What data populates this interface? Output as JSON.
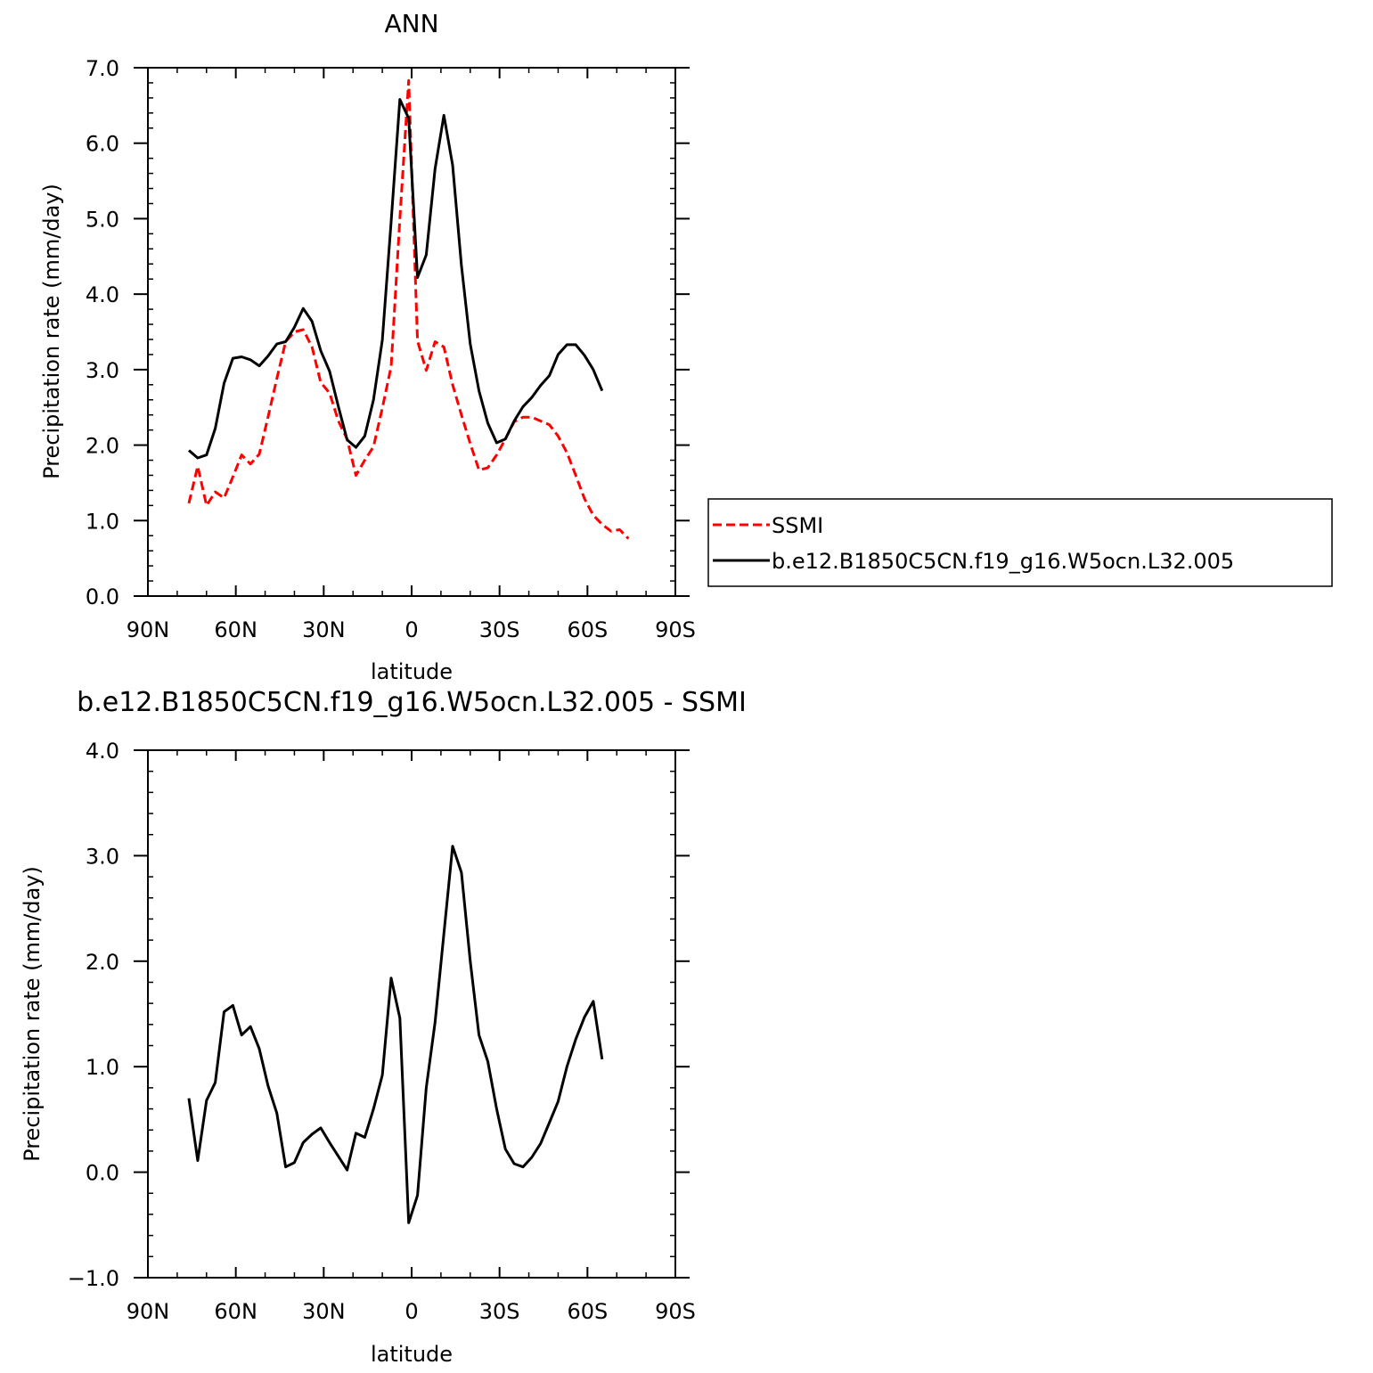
{
  "chart_data": [
    {
      "type": "line",
      "title": "ANN",
      "xlabel": "latitude",
      "ylabel": "Precipitation rate (mm/day)",
      "xlim": [
        90,
        -90
      ],
      "ylim": [
        0,
        7
      ],
      "x_ticks": [
        90,
        60,
        30,
        0,
        -30,
        -60,
        -90
      ],
      "x_tick_labels": [
        "90N",
        "60N",
        "30N",
        "0",
        "30S",
        "60S",
        "90S"
      ],
      "y_ticks": [
        0,
        1,
        2,
        3,
        4,
        5,
        6,
        7
      ],
      "y_tick_labels": [
        "0.0",
        "1.0",
        "2.0",
        "3.0",
        "4.0",
        "5.0",
        "6.0",
        "7.0"
      ],
      "legend_position": "right",
      "series": [
        {
          "name": "SSMI",
          "color": "#ff0000",
          "dash": "dashed",
          "x": [
            76,
            73,
            70,
            67,
            64,
            61,
            58,
            55,
            52,
            49,
            46,
            43,
            40,
            37,
            34,
            31,
            28,
            25,
            22,
            19,
            16,
            13,
            10,
            7,
            4,
            1,
            -2,
            -5,
            -8,
            -11,
            -14,
            -17,
            -20,
            -23,
            -26,
            -29,
            -32,
            -35,
            -38,
            -41,
            -44,
            -47,
            -50,
            -53,
            -56,
            -59,
            -62,
            -65,
            -68,
            -71,
            -74
          ],
          "y": [
            1.23,
            1.72,
            1.2,
            1.38,
            1.3,
            1.58,
            1.87,
            1.75,
            1.88,
            2.37,
            2.88,
            3.37,
            3.5,
            3.53,
            3.3,
            2.83,
            2.69,
            2.32,
            2.08,
            1.6,
            1.8,
            1.98,
            2.49,
            3.04,
            5.0,
            6.83,
            3.38,
            2.99,
            3.37,
            3.3,
            2.8,
            2.4,
            2.02,
            1.67,
            1.7,
            1.87,
            2.08,
            2.31,
            2.37,
            2.37,
            2.32,
            2.27,
            2.12,
            1.9,
            1.6,
            1.29,
            1.07,
            0.95,
            0.86,
            0.88,
            0.76
          ]
        },
        {
          "name": "b.e12.B1850C5CN.f19_g16.W5ocn.L32.005",
          "color": "#000000",
          "dash": "solid",
          "x": [
            76,
            73,
            70,
            67,
            64,
            61,
            58,
            55,
            52,
            49,
            46,
            43,
            40,
            37,
            34,
            31,
            28,
            25,
            22,
            19,
            16,
            13,
            10,
            7,
            4,
            1,
            -2,
            -5,
            -8,
            -11,
            -14,
            -17,
            -20,
            -23,
            -26,
            -29,
            -32,
            -35,
            -38,
            -41,
            -44,
            -47,
            -50,
            -53,
            -56,
            -59,
            -62,
            -65
          ],
          "y": [
            1.93,
            1.83,
            1.87,
            2.22,
            2.82,
            3.15,
            3.17,
            3.13,
            3.05,
            3.18,
            3.34,
            3.37,
            3.56,
            3.81,
            3.64,
            3.25,
            2.98,
            2.51,
            2.07,
            1.97,
            2.12,
            2.6,
            3.39,
            4.96,
            6.58,
            6.33,
            4.22,
            4.52,
            5.66,
            6.37,
            5.71,
            4.38,
            3.34,
            2.72,
            2.29,
            2.03,
            2.08,
            2.32,
            2.51,
            2.63,
            2.79,
            2.92,
            3.2,
            3.33,
            3.33,
            3.19,
            3.0,
            2.72
          ]
        }
      ]
    },
    {
      "type": "line",
      "title": "b.e12.B1850C5CN.f19_g16.W5ocn.L32.005 - SSMI",
      "xlabel": "latitude",
      "ylabel": "Precipitation rate (mm/day)",
      "xlim": [
        90,
        -90
      ],
      "ylim": [
        -1,
        4
      ],
      "x_ticks": [
        90,
        60,
        30,
        0,
        -30,
        -60,
        -90
      ],
      "x_tick_labels": [
        "90N",
        "60N",
        "30N",
        "0",
        "30S",
        "60S",
        "90S"
      ],
      "y_ticks": [
        -1,
        0,
        1,
        2,
        3,
        4
      ],
      "y_tick_labels": [
        "−1.0",
        "0.0",
        "1.0",
        "2.0",
        "3.0",
        "4.0"
      ],
      "series": [
        {
          "color": "#000000",
          "dash": "solid",
          "x": [
            76,
            73,
            70,
            67,
            64,
            61,
            58,
            55,
            52,
            49,
            46,
            43,
            40,
            37,
            34,
            31,
            28,
            25,
            22,
            19,
            16,
            13,
            10,
            7,
            4,
            1,
            -2,
            -5,
            -8,
            -11,
            -14,
            -17,
            -20,
            -23,
            -26,
            -29,
            -32,
            -35,
            -38,
            -41,
            -44,
            -47,
            -50,
            -53,
            -56,
            -59,
            -62,
            -65
          ],
          "y": [
            0.7,
            0.11,
            0.68,
            0.85,
            1.52,
            1.58,
            1.3,
            1.38,
            1.17,
            0.82,
            0.56,
            0.05,
            0.09,
            0.28,
            0.36,
            0.42,
            0.28,
            0.15,
            0.02,
            0.37,
            0.33,
            0.6,
            0.92,
            1.84,
            1.46,
            -0.48,
            -0.22,
            0.8,
            1.42,
            2.26,
            3.09,
            2.84,
            2.0,
            1.3,
            1.05,
            0.6,
            0.22,
            0.08,
            0.05,
            0.14,
            0.27,
            0.47,
            0.67,
            1.0,
            1.26,
            1.47,
            1.62,
            1.07
          ]
        }
      ]
    }
  ]
}
